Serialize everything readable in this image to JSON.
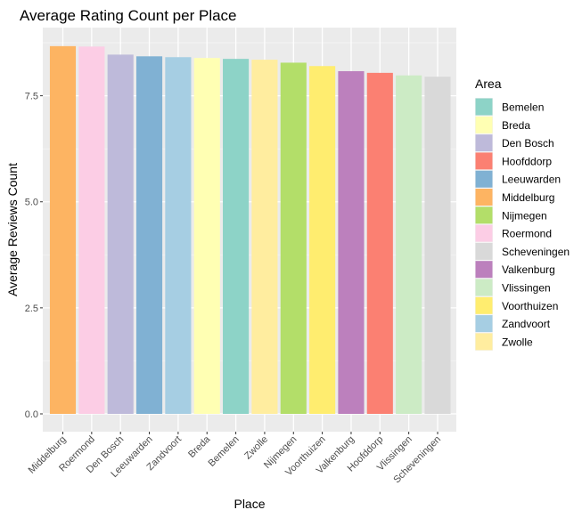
{
  "chart_data": {
    "type": "bar",
    "title": "Average Rating Count per Place",
    "xlabel": "Place",
    "ylabel": "Average Reviews Count",
    "ylim": [
      0,
      8.9
    ],
    "yticks": [
      0.0,
      2.5,
      5.0,
      7.5
    ],
    "ytick_labels": [
      "0.0",
      "2.5",
      "5.0",
      "7.5"
    ],
    "grid": true,
    "legend_title": "Area",
    "legend_position": "right",
    "categories": [
      "Middelburg",
      "Roermond",
      "Den Bosch",
      "Leeuwarden",
      "Zandvoort",
      "Breda",
      "Bemelen",
      "Zwolle",
      "Nijmegen",
      "Voorthuizen",
      "Valkenburg",
      "Hoofddorp",
      "Vlissingen",
      "Scheveningen"
    ],
    "values": [
      8.67,
      8.66,
      8.47,
      8.43,
      8.41,
      8.39,
      8.37,
      8.35,
      8.28,
      8.2,
      8.08,
      8.04,
      7.98,
      7.95
    ],
    "colors": {
      "Bemelen": "#8DD3C7",
      "Breda": "#FFFFB3",
      "Den Bosch": "#BEBADA",
      "Hoofddorp": "#FB8072",
      "Leeuwarden": "#80B1D3",
      "Middelburg": "#FDB462",
      "Nijmegen": "#B3DE69",
      "Roermond": "#FCCDE5",
      "Scheveningen": "#D9D9D9",
      "Valkenburg": "#BC80BD",
      "Vlissingen": "#CCEBC5",
      "Voorthuizen": "#FFED6F",
      "Zandvoort": "#A6CEE3",
      "Zwolle": "#FFED9F"
    },
    "legend": [
      "Bemelen",
      "Breda",
      "Den Bosch",
      "Hoofddorp",
      "Leeuwarden",
      "Middelburg",
      "Nijmegen",
      "Roermond",
      "Scheveningen",
      "Valkenburg",
      "Vlissingen",
      "Voorthuizen",
      "Zandvoort",
      "Zwolle"
    ]
  }
}
